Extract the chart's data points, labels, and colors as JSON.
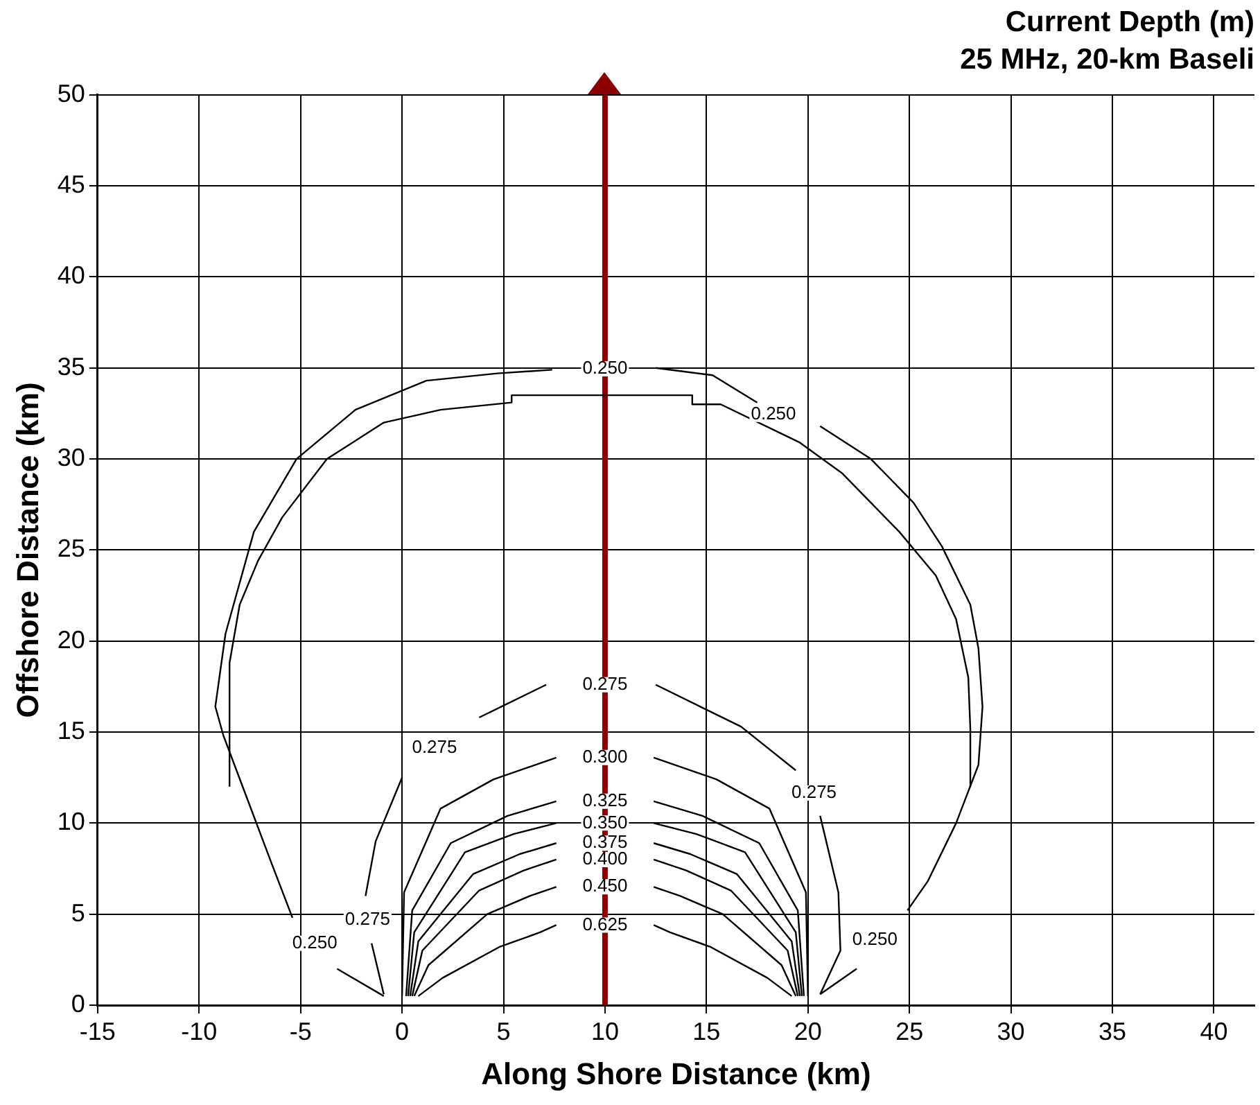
{
  "chart_data": {
    "type": "line",
    "title": "Current Depth (m)",
    "subtitle": "25 MHz, 20-km Baseli",
    "xlabel": "Along Shore Distance (km)",
    "ylabel": "Offshore Distance (km)",
    "xlim": [
      -15,
      42
    ],
    "ylim": [
      0,
      50
    ],
    "xticks": [
      -15,
      -10,
      -5,
      0,
      5,
      10,
      15,
      20,
      25,
      30,
      35,
      40
    ],
    "yticks": [
      0,
      5,
      10,
      15,
      20,
      25,
      30,
      35,
      40,
      45,
      50
    ],
    "grid": true,
    "legend": false,
    "marker": "none",
    "line_style": "solid",
    "series": [
      {
        "color": "#000000",
        "x": [
          -0.9,
          -3.2,
          -4.3,
          -5.4,
          -6.5,
          -8.8,
          -9.2,
          -8.7,
          -7.3,
          -5.2,
          -2.3,
          1.2,
          4.7,
          7.4,
          10,
          12.5,
          15.3,
          17.5,
          18.3,
          20.6,
          23.1,
          25.2,
          26.6,
          28,
          28.4,
          28.6,
          28.4,
          27.3,
          25.9,
          24.9,
          23.3,
          22.4,
          20.6
        ],
        "values": [
          0.5,
          2,
          null,
          4.8,
          8,
          14.8,
          16.4,
          20.4,
          26,
          30,
          32.7,
          34.3,
          34.7,
          34.9,
          null,
          35,
          34.6,
          33.1,
          null,
          31.8,
          30,
          27.6,
          25.2,
          22,
          19.6,
          16.4,
          13.2,
          10,
          6.8,
          5.2,
          null,
          2,
          0.6
        ]
      },
      {
        "color": "#000000",
        "x": [
          -8.5,
          -8.5,
          -8,
          -7.1,
          -5.9,
          -3.7,
          -0.9,
          1.9,
          5.4,
          5.4,
          14.3,
          14.3,
          15.7,
          19.6,
          21.7,
          24.5,
          26.3,
          27.3,
          27.9,
          28,
          28
        ],
        "values": [
          12,
          18.8,
          22,
          24.4,
          26.8,
          30,
          32,
          32.7,
          33.1,
          33.5,
          33.5,
          33,
          33,
          30.9,
          29.2,
          26,
          23.6,
          21.2,
          18,
          15.2,
          12
        ]
      },
      {
        "color": "#000000",
        "x": [
          -0.9,
          -1.5,
          -1.7,
          -1.8,
          -1.3,
          0,
          1.6,
          3.8,
          7.1,
          10,
          12.5,
          16.7,
          19.4,
          20.3,
          20.6,
          21.5,
          21.6,
          20.6
        ],
        "values": [
          0.6,
          3.4,
          null,
          6,
          9,
          12.5,
          null,
          15.8,
          17.6,
          null,
          17.6,
          15.3,
          12.9,
          null,
          10.4,
          6.2,
          3,
          0.6
        ]
      },
      {
        "color": "#000000",
        "x": [
          0,
          0.1,
          1.9,
          4.5,
          7.6,
          10,
          12.4,
          15.5,
          18.1,
          19.9,
          20
        ],
        "values": [
          0.5,
          6.2,
          10.8,
          12.4,
          13.6,
          null,
          13.6,
          12.4,
          10.8,
          6.2,
          0.5
        ]
      },
      {
        "color": "#000000",
        "x": [
          0.2,
          0.5,
          2.4,
          5.2,
          7.6,
          10,
          12.4,
          14.8,
          17.6,
          19.5,
          19.8
        ],
        "values": [
          0.5,
          5.2,
          8.9,
          10.4,
          11.2,
          null,
          11.2,
          10.4,
          8.9,
          5.2,
          0.5
        ]
      },
      {
        "color": "#000000",
        "x": [
          0.3,
          0.6,
          3.1,
          5.5,
          7.6,
          10,
          12.4,
          14.5,
          16.9,
          19.4,
          19.7
        ],
        "values": [
          0.5,
          4,
          8.4,
          9.4,
          10,
          null,
          10,
          9.4,
          8.4,
          4,
          0.5
        ]
      },
      {
        "color": "#000000",
        "x": [
          0.4,
          0.8,
          3.5,
          5.8,
          7.6,
          10,
          12.4,
          14.2,
          16.5,
          19.2,
          19.6
        ],
        "values": [
          0.5,
          3.5,
          7.2,
          8.3,
          8.9,
          null,
          8.9,
          8.3,
          7.2,
          3.5,
          0.5
        ]
      },
      {
        "color": "#000000",
        "x": [
          0.5,
          1,
          3.8,
          6,
          7.6,
          10,
          12.4,
          14,
          16.2,
          19,
          19.5
        ],
        "values": [
          0.5,
          3,
          6.3,
          7.4,
          8,
          null,
          8,
          7.4,
          6.3,
          3,
          0.5
        ]
      },
      {
        "color": "#000000",
        "x": [
          0.6,
          1.3,
          4.2,
          6.3,
          7.6,
          10,
          12.4,
          13.7,
          15.8,
          18.7,
          19.4
        ],
        "values": [
          0.5,
          2.2,
          5,
          6,
          6.5,
          null,
          6.5,
          6,
          5,
          2.2,
          0.5
        ]
      },
      {
        "color": "#000000",
        "x": [
          0.8,
          2,
          4.8,
          6.8,
          7.6,
          10,
          12.4,
          13.2,
          15.2,
          18,
          19.2
        ],
        "values": [
          0.5,
          1.5,
          3.2,
          4,
          4.4,
          null,
          4.4,
          4,
          3.2,
          1.5,
          0.5
        ]
      }
    ],
    "ref_lines": [
      {
        "axis": "x",
        "value": 10,
        "color": "#8b0000"
      }
    ],
    "annotations": [
      "0.250",
      "0.250",
      "0.250",
      "0.250",
      "0.275",
      "0.275",
      "0.275",
      "0.275",
      "0.300",
      "0.325",
      "0.350",
      "0.375",
      "0.400",
      "0.450",
      "0.625"
    ]
  }
}
